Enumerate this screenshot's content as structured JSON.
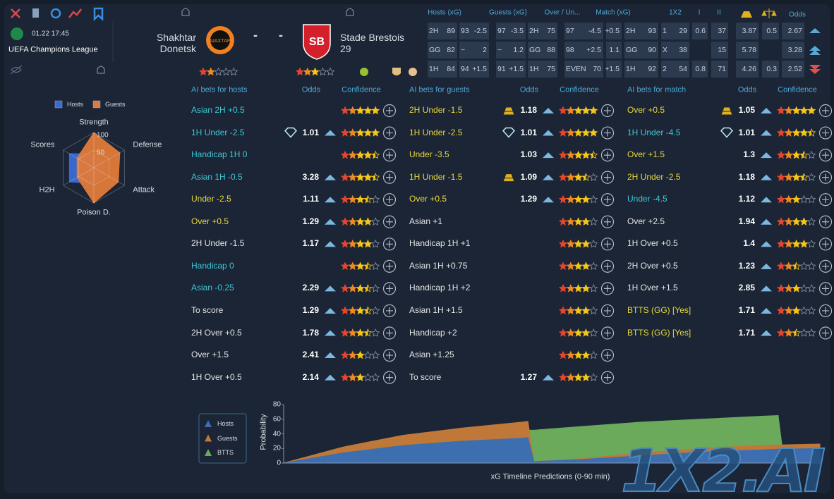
{
  "header": {
    "match_time": "01.22 17:45",
    "league": "UEFA Champions League",
    "home_team": "Shakhtar Donetsk",
    "away_team": "Stade Brestois 29",
    "score": [
      "-",
      "-"
    ],
    "home_rating": 2,
    "away_rating": 3,
    "watermark": "1X2.AI"
  },
  "odds_table": {
    "columns": [
      "Hosts (xG)",
      "Guests (xG)",
      "Over / Un...",
      "Match (xG)",
      "1X2",
      "I",
      "II",
      "Odds"
    ],
    "rows": [
      [
        [
          "2H",
          "89"
        ],
        [
          "93",
          "-2.5"
        ],
        [
          "97",
          "-3.5"
        ],
        [
          "2H",
          "75"
        ],
        [
          "97",
          "-4.5"
        ],
        [
          "+0.5"
        ],
        [
          "2H",
          "93"
        ],
        [
          "1",
          "29"
        ],
        [
          "0.6"
        ],
        [
          "37"
        ],
        [
          "3.87"
        ],
        [
          "0.5"
        ],
        [
          "2.67"
        ]
      ],
      [
        [
          "GG",
          "82"
        ],
        [
          "~",
          "2"
        ],
        [
          "~",
          "1.2"
        ],
        [
          "GG",
          "88"
        ],
        [
          "98",
          "+2.5"
        ],
        [
          "1.1"
        ],
        [
          "GG",
          "90"
        ],
        [
          "X",
          "38"
        ],
        null,
        [
          "15"
        ],
        [
          "5.78"
        ],
        null,
        [
          "3.28"
        ]
      ],
      [
        [
          "1H",
          "84"
        ],
        [
          "94",
          "+1.5"
        ],
        [
          "91",
          "+1.5"
        ],
        [
          "1H",
          "75"
        ],
        [
          "EVEN",
          "70"
        ],
        [
          "+1.5"
        ],
        [
          "1H",
          "92"
        ],
        [
          "2",
          "54"
        ],
        [
          "0.8"
        ],
        [
          "71"
        ],
        [
          "4.26"
        ],
        [
          "0.3"
        ],
        [
          "2.52"
        ]
      ]
    ]
  },
  "bets": [
    {
      "title": "AI bets for hosts",
      "odds_header": "Odds",
      "confidence_header": "Confidence",
      "rows": [
        {
          "label": "Asian 2H +0.5",
          "confidence": 5,
          "color": "#3ec7d6"
        },
        {
          "label": "1H Under -2.5",
          "odds": 1.01,
          "icon": "diamond",
          "confidence": 5,
          "color": "#3ec7d6"
        },
        {
          "label": "Handicap 1H 0",
          "confidence": 4.5,
          "color": "#3ec7d6"
        },
        {
          "label": "Asian 1H -0.5",
          "odds": 3.28,
          "confidence": 4.5,
          "color": "#3ec7d6"
        },
        {
          "label": "Under -2.5",
          "odds": 1.11,
          "confidence": 3.5,
          "color": "#e8d83a"
        },
        {
          "label": "Over +0.5",
          "odds": 1.29,
          "confidence": 4,
          "color": "#e8d83a"
        },
        {
          "label": "2H Under -1.5",
          "odds": 1.17,
          "confidence": 4,
          "color": "#e6e6e6"
        },
        {
          "label": "Handicap 0",
          "confidence": 3.5,
          "color": "#3ec7d6"
        },
        {
          "label": "Asian -0.25",
          "odds": 2.29,
          "confidence": 3.5,
          "color": "#3ec7d6"
        },
        {
          "label": "To score",
          "odds": 1.29,
          "confidence": 3.5,
          "color": "#e6e6e6"
        },
        {
          "label": "2H Over +0.5",
          "odds": 1.78,
          "confidence": 3.5,
          "color": "#e6e6e6"
        },
        {
          "label": "Over +1.5",
          "odds": 2.41,
          "confidence": 3,
          "color": "#e6e6e6"
        },
        {
          "label": "1H Over +0.5",
          "odds": 2.14,
          "confidence": 3,
          "color": "#e6e6e6"
        }
      ]
    },
    {
      "title": "AI bets for guests",
      "odds_header": "Odds",
      "confidence_header": "Confidence",
      "rows": [
        {
          "label": "2H Under -1.5",
          "odds": 1.18,
          "icon": "gold",
          "confidence": 5,
          "color": "#e8d83a"
        },
        {
          "label": "1H Under -2.5",
          "odds": 1.01,
          "icon": "diamond",
          "confidence": 5,
          "color": "#e8d83a"
        },
        {
          "label": "Under -3.5",
          "odds": 1.03,
          "confidence": 4.5,
          "color": "#e8d83a"
        },
        {
          "label": "1H Under -1.5",
          "odds": 1.09,
          "icon": "gold",
          "confidence": 3.5,
          "color": "#e8d83a"
        },
        {
          "label": "Over +0.5",
          "odds": 1.29,
          "confidence": 4,
          "color": "#e8d83a"
        },
        {
          "label": "Asian +1",
          "confidence": 4,
          "color": "#e6e6e6"
        },
        {
          "label": "Handicap 1H +1",
          "confidence": 4,
          "color": "#e6e6e6"
        },
        {
          "label": "Asian 1H +0.75",
          "confidence": 4,
          "color": "#e6e6e6"
        },
        {
          "label": "Handicap 1H +2",
          "confidence": 4,
          "color": "#e6e6e6"
        },
        {
          "label": "Asian 1H +1.5",
          "confidence": 4,
          "color": "#e6e6e6"
        },
        {
          "label": "Handicap +2",
          "confidence": 4,
          "color": "#e6e6e6"
        },
        {
          "label": "Asian +1.25",
          "confidence": 4,
          "color": "#e6e6e6"
        },
        {
          "label": "To score",
          "odds": 1.27,
          "confidence": 4,
          "color": "#e6e6e6"
        }
      ]
    },
    {
      "title": "AI bets for match",
      "odds_header": "Odds",
      "confidence_header": "Confidence",
      "rows": [
        {
          "label": "Over +0.5",
          "odds": 1.05,
          "icon": "gold",
          "confidence": 5,
          "color": "#e8d83a"
        },
        {
          "label": "1H Under -4.5",
          "odds": 1.01,
          "icon": "diamond",
          "confidence": 4.5,
          "color": "#3ec7d6"
        },
        {
          "label": "Over +1.5",
          "odds": 1.3,
          "confidence": 3.5,
          "color": "#e8d83a"
        },
        {
          "label": "2H Under -2.5",
          "odds": 1.18,
          "confidence": 3.5,
          "color": "#e8d83a"
        },
        {
          "label": "Under -4.5",
          "odds": 1.12,
          "confidence": 3,
          "color": "#3ec7d6"
        },
        {
          "label": "Over +2.5",
          "odds": 1.94,
          "confidence": 4,
          "color": "#e6e6e6"
        },
        {
          "label": "1H Over +0.5",
          "odds": 1.4,
          "confidence": 4,
          "color": "#e6e6e6"
        },
        {
          "label": "2H Over +0.5",
          "odds": 1.23,
          "confidence": 2.5,
          "color": "#e6e6e6"
        },
        {
          "label": "1H Over +1.5",
          "odds": 2.85,
          "confidence": 3,
          "color": "#e6e6e6"
        },
        {
          "label": "BTTS (GG) [Yes]",
          "odds": 1.71,
          "confidence": 3,
          "color": "#e8d83a"
        },
        {
          "label": "BTTS (GG) [Yes]",
          "odds": 1.71,
          "confidence": 2.5,
          "color": "#e8d83a"
        }
      ]
    }
  ],
  "chart_data": [
    {
      "type": "radar",
      "categories": [
        "Strength",
        "Defense",
        "Attack",
        "Poison D.",
        "H2H",
        "Scores"
      ],
      "rlim": [
        0,
        100
      ],
      "rticks": [
        50,
        100
      ],
      "series": [
        {
          "name": "Hosts",
          "color": "#3a6ad8",
          "values": [
            40,
            35,
            35,
            45,
            80,
            80
          ]
        },
        {
          "name": "Guests",
          "color": "#e07a3a",
          "values": [
            100,
            85,
            80,
            100,
            55,
            55
          ]
        }
      ]
    },
    {
      "type": "area",
      "xlabel": "xG Timeline Predictions (0-90 min)",
      "ylabel": "Probability",
      "xlim": [
        0,
        90
      ],
      "ylim": [
        0,
        80
      ],
      "yticks": [
        0,
        20,
        40,
        60,
        80
      ],
      "x": [
        0,
        10,
        20,
        30,
        40,
        41,
        42,
        50,
        60,
        70,
        80,
        83,
        84,
        90
      ],
      "series": [
        {
          "name": "Hosts",
          "color": "#3d6fb0",
          "values": [
            0,
            14,
            24,
            30,
            34,
            35,
            2,
            5,
            10,
            15,
            18,
            19,
            19,
            20
          ]
        },
        {
          "name": "Guests",
          "color": "#c07838",
          "values": [
            0,
            22,
            38,
            48,
            56,
            57,
            2,
            6,
            14,
            20,
            24,
            25,
            25,
            26
          ]
        },
        {
          "name": "BTTS",
          "color": "#6aaa5a",
          "values": [
            0,
            20,
            32,
            40,
            45,
            45,
            45,
            50,
            56,
            60,
            64,
            65,
            0,
            0
          ]
        }
      ]
    }
  ]
}
